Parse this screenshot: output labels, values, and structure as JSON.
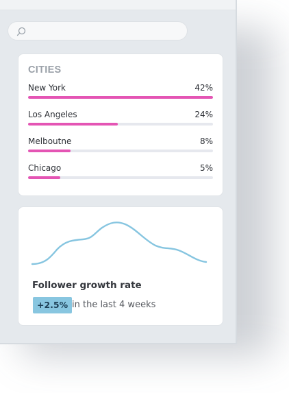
{
  "search": {
    "placeholder": "",
    "icon": "search-icon"
  },
  "cities": {
    "title": "CITIES",
    "accent_color": "#e455b4",
    "items": [
      {
        "name": "New York",
        "percent_label": "42%",
        "bar_fraction": 1.0
      },
      {
        "name": "Los Angeles",
        "percent_label": "24%",
        "bar_fraction": 0.485
      },
      {
        "name": "Melboutne",
        "percent_label": "8%",
        "bar_fraction": 0.23
      },
      {
        "name": "Chicago",
        "percent_label": "5%",
        "bar_fraction": 0.175
      }
    ]
  },
  "growth": {
    "title": "Follower growth rate",
    "change": "+2.5%",
    "period": "in the last 4 weeks",
    "line_color": "#86c5e0",
    "badge_color": "#88c6e0"
  }
}
